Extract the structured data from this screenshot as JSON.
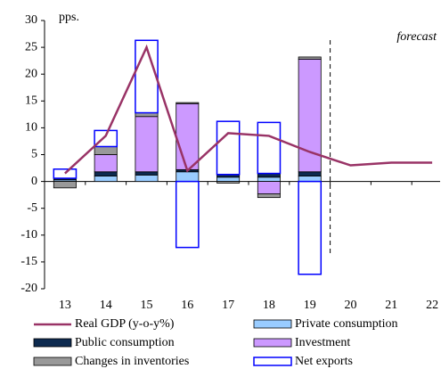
{
  "chart_data": {
    "type": "bar",
    "categories": [
      "13",
      "14",
      "15",
      "16",
      "17",
      "18",
      "19",
      "20",
      "21",
      "22"
    ],
    "series": [
      {
        "name": "Real GDP (y-o-y%)",
        "type": "line",
        "color": "#993366",
        "values": [
          1.5,
          8.5,
          25,
          2,
          9,
          8.5,
          5.5,
          3,
          3.5,
          3.5
        ]
      },
      {
        "name": "Private consumption",
        "color": "#99ccff",
        "values": [
          0.3,
          1,
          1.2,
          1.8,
          0.8,
          0.8,
          1,
          null,
          null,
          null
        ]
      },
      {
        "name": "Public consumption",
        "color": "#0d2a4f",
        "values": [
          0.3,
          0.8,
          0.6,
          0.4,
          0.5,
          0.7,
          0.8,
          null,
          null,
          null
        ]
      },
      {
        "name": "Investment",
        "color": "#cc99ff",
        "values": [
          0,
          3.2,
          10.3,
          12.3,
          0,
          -2.3,
          21,
          null,
          null,
          null
        ]
      },
      {
        "name": "Changes in inventories",
        "color": "#999999",
        "values": [
          -1.2,
          1.5,
          0.7,
          0.2,
          -0.3,
          -0.7,
          0.4,
          null,
          null,
          null
        ]
      },
      {
        "name": "Net exports",
        "color": "#ffffff",
        "values": [
          1.7,
          3,
          13.5,
          -12.3,
          9.9,
          9.5,
          -17.3,
          null,
          null,
          null
        ]
      }
    ],
    "ylim": [
      -20,
      30
    ],
    "yticks": [
      -20,
      -15,
      -10,
      -5,
      0,
      5,
      10,
      15,
      20,
      25,
      30
    ],
    "y_unit_label": "pps.",
    "annotation": "forecast"
  }
}
